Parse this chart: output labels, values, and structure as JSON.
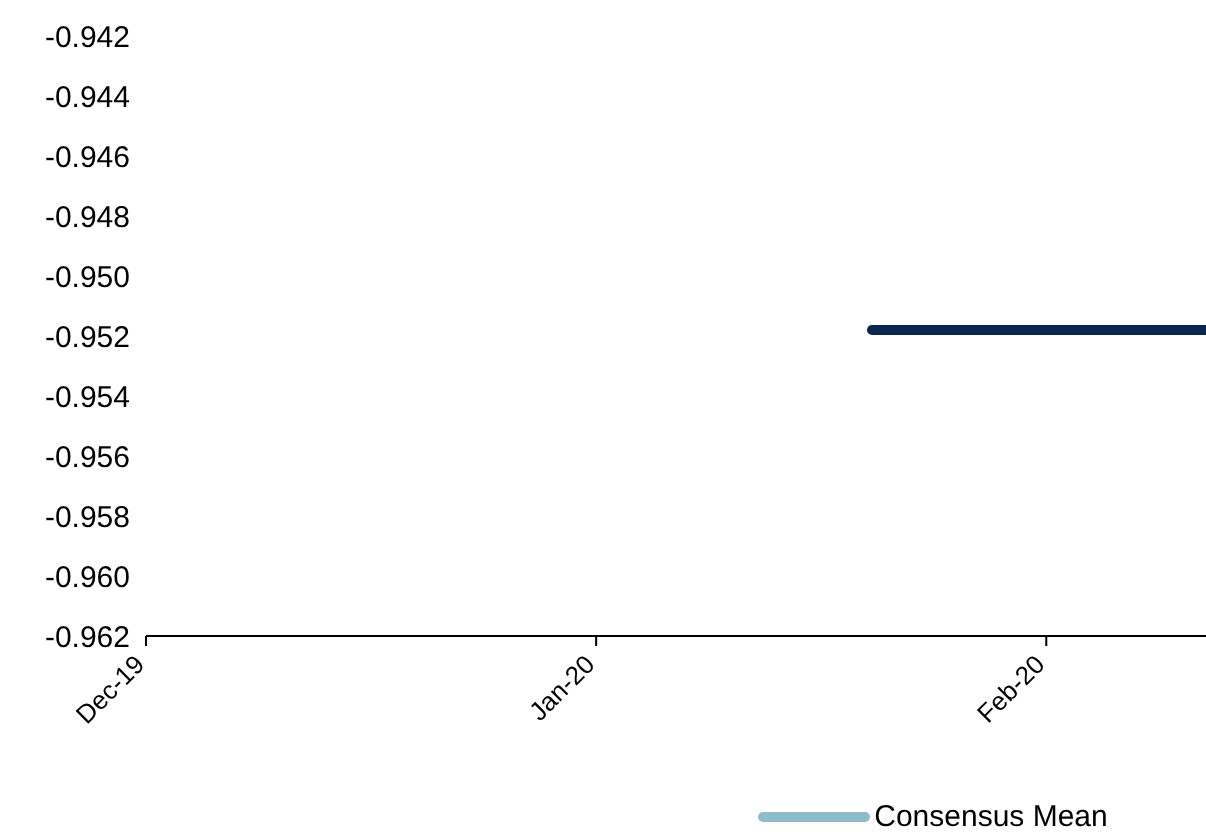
{
  "chart_data": {
    "type": "line",
    "x": [
      "2020-01-20",
      "2020-02-12"
    ],
    "series": [
      {
        "color": "#0a2550",
        "values": [
          -0.9518,
          -0.9518
        ]
      },
      {
        "name": "Consensus Mean",
        "color": "#8fbccb",
        "values": [
          null,
          null
        ]
      }
    ],
    "xlim": [
      "2019-12-01",
      "2020-02-12"
    ],
    "xticks": [
      {
        "value": "2019-12-01",
        "label": "Dec-19"
      },
      {
        "value": "2020-01-01",
        "label": "Jan-20"
      },
      {
        "value": "2020-02-01",
        "label": "Feb-20"
      }
    ],
    "ylim": [
      -0.962,
      -0.942
    ],
    "yticks": [
      -0.962,
      {
        "value": -0.96,
        "label": "-0.960"
      },
      -0.958,
      -0.956,
      -0.954,
      -0.952,
      {
        "value": -0.95,
        "label": "-0.950"
      },
      -0.948,
      -0.946,
      -0.944,
      -0.942
    ],
    "grid": false,
    "legend": "bottom",
    "marker": "none",
    "line_style": "solid"
  }
}
